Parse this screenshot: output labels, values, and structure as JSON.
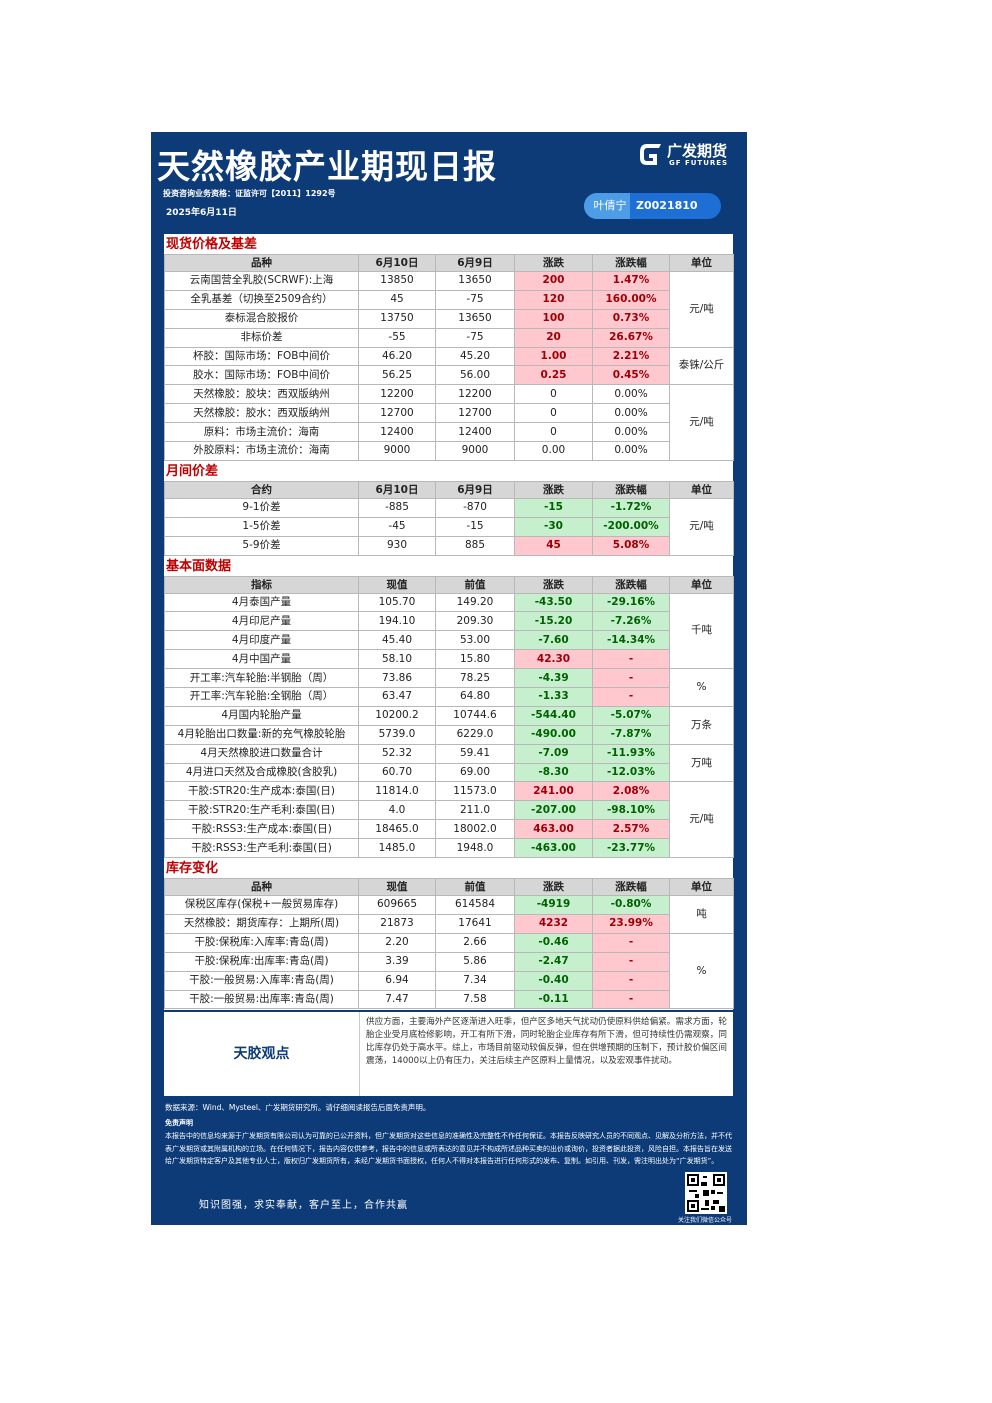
{
  "header": {
    "title": "天然橡胶产业期现日报",
    "logo_cn": "广发期货",
    "logo_en": "GF FUTURES",
    "license": "投资咨询业务资格：证监许可【2011】1292号",
    "date": "2025年6月11日",
    "analyst": "叶倩宁",
    "analyst_id": "Z0021810"
  },
  "sections": [
    {
      "title": "现货价格及基差",
      "columns": [
        "品种",
        "6月10日",
        "6月9日",
        "涨跌",
        "涨跌幅",
        "单位"
      ],
      "rows": [
        [
          "云南国营全乳胶(SCRWF):上海",
          "13850",
          "13650",
          "200",
          "1.47%",
          "元/吨"
        ],
        [
          "全乳基差（切换至2509合约）",
          "45",
          "-75",
          "120",
          "160.00%",
          null
        ],
        [
          "泰标混合胶报价",
          "13750",
          "13650",
          "100",
          "0.73%",
          null
        ],
        [
          "非标价差",
          "-55",
          "-75",
          "20",
          "26.67%",
          null
        ],
        [
          "杯胶：国际市场：FOB中间价",
          "46.20",
          "45.20",
          "1.00",
          "2.21%",
          "泰铢/公斤"
        ],
        [
          "胶水：国际市场：FOB中间价",
          "56.25",
          "56.00",
          "0.25",
          "0.45%",
          null
        ],
        [
          "天然橡胶：胶块：西双版纳州",
          "12200",
          "12200",
          "0",
          "0.00%",
          "元/吨"
        ],
        [
          "天然橡胶：胶水：西双版纳州",
          "12700",
          "12700",
          "0",
          "0.00%",
          null
        ],
        [
          "原料：市场主流价：海南",
          "12400",
          "12400",
          "0",
          "0.00%",
          null
        ],
        [
          "外胶原料：市场主流价：海南",
          "9000",
          "9000",
          "0.00",
          "0.00%",
          null
        ]
      ]
    },
    {
      "title": "月间价差",
      "columns": [
        "合约",
        "6月10日",
        "6月9日",
        "涨跌",
        "涨跌幅",
        "单位"
      ],
      "rows": [
        [
          "9-1价差",
          "-885",
          "-870",
          "-15",
          "-1.72%",
          "元/吨"
        ],
        [
          "1-5价差",
          "-45",
          "-15",
          "-30",
          "-200.00%",
          null
        ],
        [
          "5-9价差",
          "930",
          "885",
          "45",
          "5.08%",
          null
        ]
      ]
    },
    {
      "title": "基本面数据",
      "columns": [
        "指标",
        "现值",
        "前值",
        "涨跌",
        "涨跌幅",
        "单位"
      ],
      "rows": [
        [
          "4月泰国产量",
          "105.70",
          "149.20",
          "-43.50",
          "-29.16%",
          "千吨"
        ],
        [
          "4月印尼产量",
          "194.10",
          "209.30",
          "-15.20",
          "-7.26%",
          null
        ],
        [
          "4月印度产量",
          "45.40",
          "53.00",
          "-7.60",
          "-14.34%",
          null
        ],
        [
          "4月中国产量",
          "58.10",
          "15.80",
          "42.30",
          "-",
          null
        ],
        [
          "开工率:汽车轮胎:半钢胎（周）",
          "73.86",
          "78.25",
          "-4.39",
          "-",
          "%"
        ],
        [
          "开工率:汽车轮胎:全钢胎（周）",
          "63.47",
          "64.80",
          "-1.33",
          "-",
          null
        ],
        [
          "4月国内轮胎产量",
          "10200.2",
          "10744.6",
          "-544.40",
          "-5.07%",
          "万条"
        ],
        [
          "4月轮胎出口数量:新的充气橡胶轮胎",
          "5739.0",
          "6229.0",
          "-490.00",
          "-7.87%",
          null
        ],
        [
          "4月天然橡胶进口数量合计",
          "52.32",
          "59.41",
          "-7.09",
          "-11.93%",
          "万吨"
        ],
        [
          "4月进口天然及合成橡胶(含胶乳)",
          "60.70",
          "69.00",
          "-8.30",
          "-12.03%",
          null
        ],
        [
          "干胶:STR20:生产成本:泰国(日)",
          "11814.0",
          "11573.0",
          "241.00",
          "2.08%",
          "元/吨"
        ],
        [
          "干胶:STR20:生产毛利:泰国(日)",
          "4.0",
          "211.0",
          "-207.00",
          "-98.10%",
          null
        ],
        [
          "干胶:RSS3:生产成本:泰国(日)",
          "18465.0",
          "18002.0",
          "463.00",
          "2.57%",
          null
        ],
        [
          "干胶:RSS3:生产毛利:泰国(日)",
          "1485.0",
          "1948.0",
          "-463.00",
          "-23.77%",
          null
        ]
      ]
    },
    {
      "title": "库存变化",
      "columns": [
        "品种",
        "现值",
        "前值",
        "涨跌",
        "涨跌幅",
        "单位"
      ],
      "rows": [
        [
          "保税区库存(保税+一般贸易库存)",
          "609665",
          "614584",
          "-4919",
          "-0.80%",
          "吨"
        ],
        [
          "天然橡胶：期货库存：上期所(周)",
          "21873",
          "17641",
          "4232",
          "23.99%",
          null
        ],
        [
          "干胶:保税库:入库率:青岛(周)",
          "2.20",
          "2.66",
          "-0.46",
          "-",
          "%"
        ],
        [
          "干胶:保税库:出库率:青岛(周)",
          "3.39",
          "5.86",
          "-2.47",
          "-",
          null
        ],
        [
          "干胶:一般贸易:入库率:青岛(周)",
          "6.94",
          "7.34",
          "-0.40",
          "-",
          null
        ],
        [
          "干胶:一般贸易:出库率:青岛(周)",
          "7.47",
          "7.58",
          "-0.11",
          "-",
          null
        ]
      ]
    }
  ],
  "view": {
    "label": "天胶观点",
    "text": "供应方面，主要海外产区逐渐进入旺季，但产区多地天气扰动仍使原料供给偏紧。需求方面，轮胎企业受月底检修影响，开工有所下滑，同时轮胎企业库存有所下滑，但可持续性仍需观察，同比库存仍处于高水平。综上，市场目前驱动较偏反弹，但在供增预期的压制下，预计胶价偏区间震荡，14000以上仍有压力，关注后续主产区原料上量情况，以及宏观事件扰动。"
  },
  "footer": {
    "source": "数据来源：Wind、Mysteel、广发期货研究所。请仔细阅读报告后面免责声明。",
    "disclaimer_title": "免责声明",
    "disclaimer": "本报告中的信息均来源于广发期货有限公司认为可靠的已公开资料，但广发期货对这些信息的准确性及完整性不作任何保证。本报告反映研究人员的不同观点、见解及分析方法，并不代表广发期货或其附属机构的立场。在任何情况下，报告内容仅供参考，报告中的信息或所表达的意见并不构成所述品种买卖的出价或询价，投资者据此投资，风险自担。本报告旨在发送给广发期货特定客户及其他专业人士，版权归广发期货所有，未经广发期货书面授权，任何人不得对本报告进行任何形式的发布、复制。如引用、刊发，需注明出处为“广发期货”。",
    "motto": "知识图强，求实奉献，客户至上，合作共赢",
    "qr_caption": "关注我们微信公众号"
  }
}
